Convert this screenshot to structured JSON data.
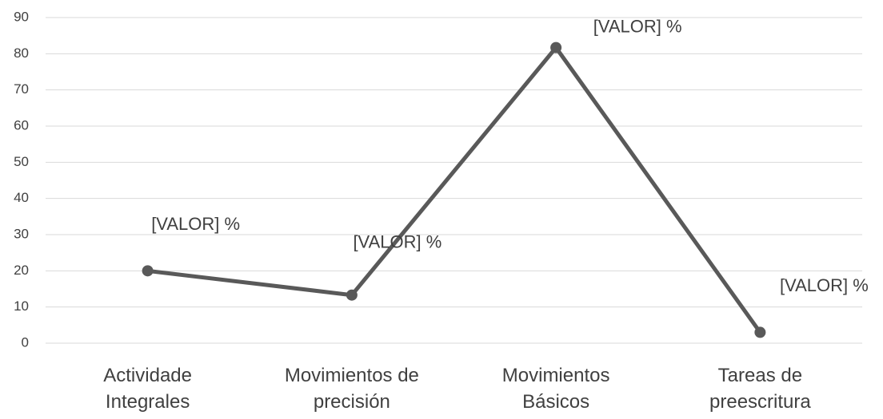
{
  "chart_data": {
    "type": "line",
    "categories": [
      "Actividade Integrales",
      "Movimientos de precisión",
      "Movimientos Básicos",
      "Tareas de preescritura"
    ],
    "series": [
      {
        "color": "#595959",
        "values": [
          20,
          13.3,
          81.7,
          3
        ],
        "value_labels": [
          "[VALOR] %",
          "[VALOR] %",
          "[VALOR] %",
          "[VALOR] %"
        ]
      }
    ],
    "ylim": [
      0,
      90
    ],
    "yticks": [
      0,
      10,
      20,
      30,
      40,
      50,
      60,
      70,
      80,
      90
    ],
    "grid": true
  }
}
